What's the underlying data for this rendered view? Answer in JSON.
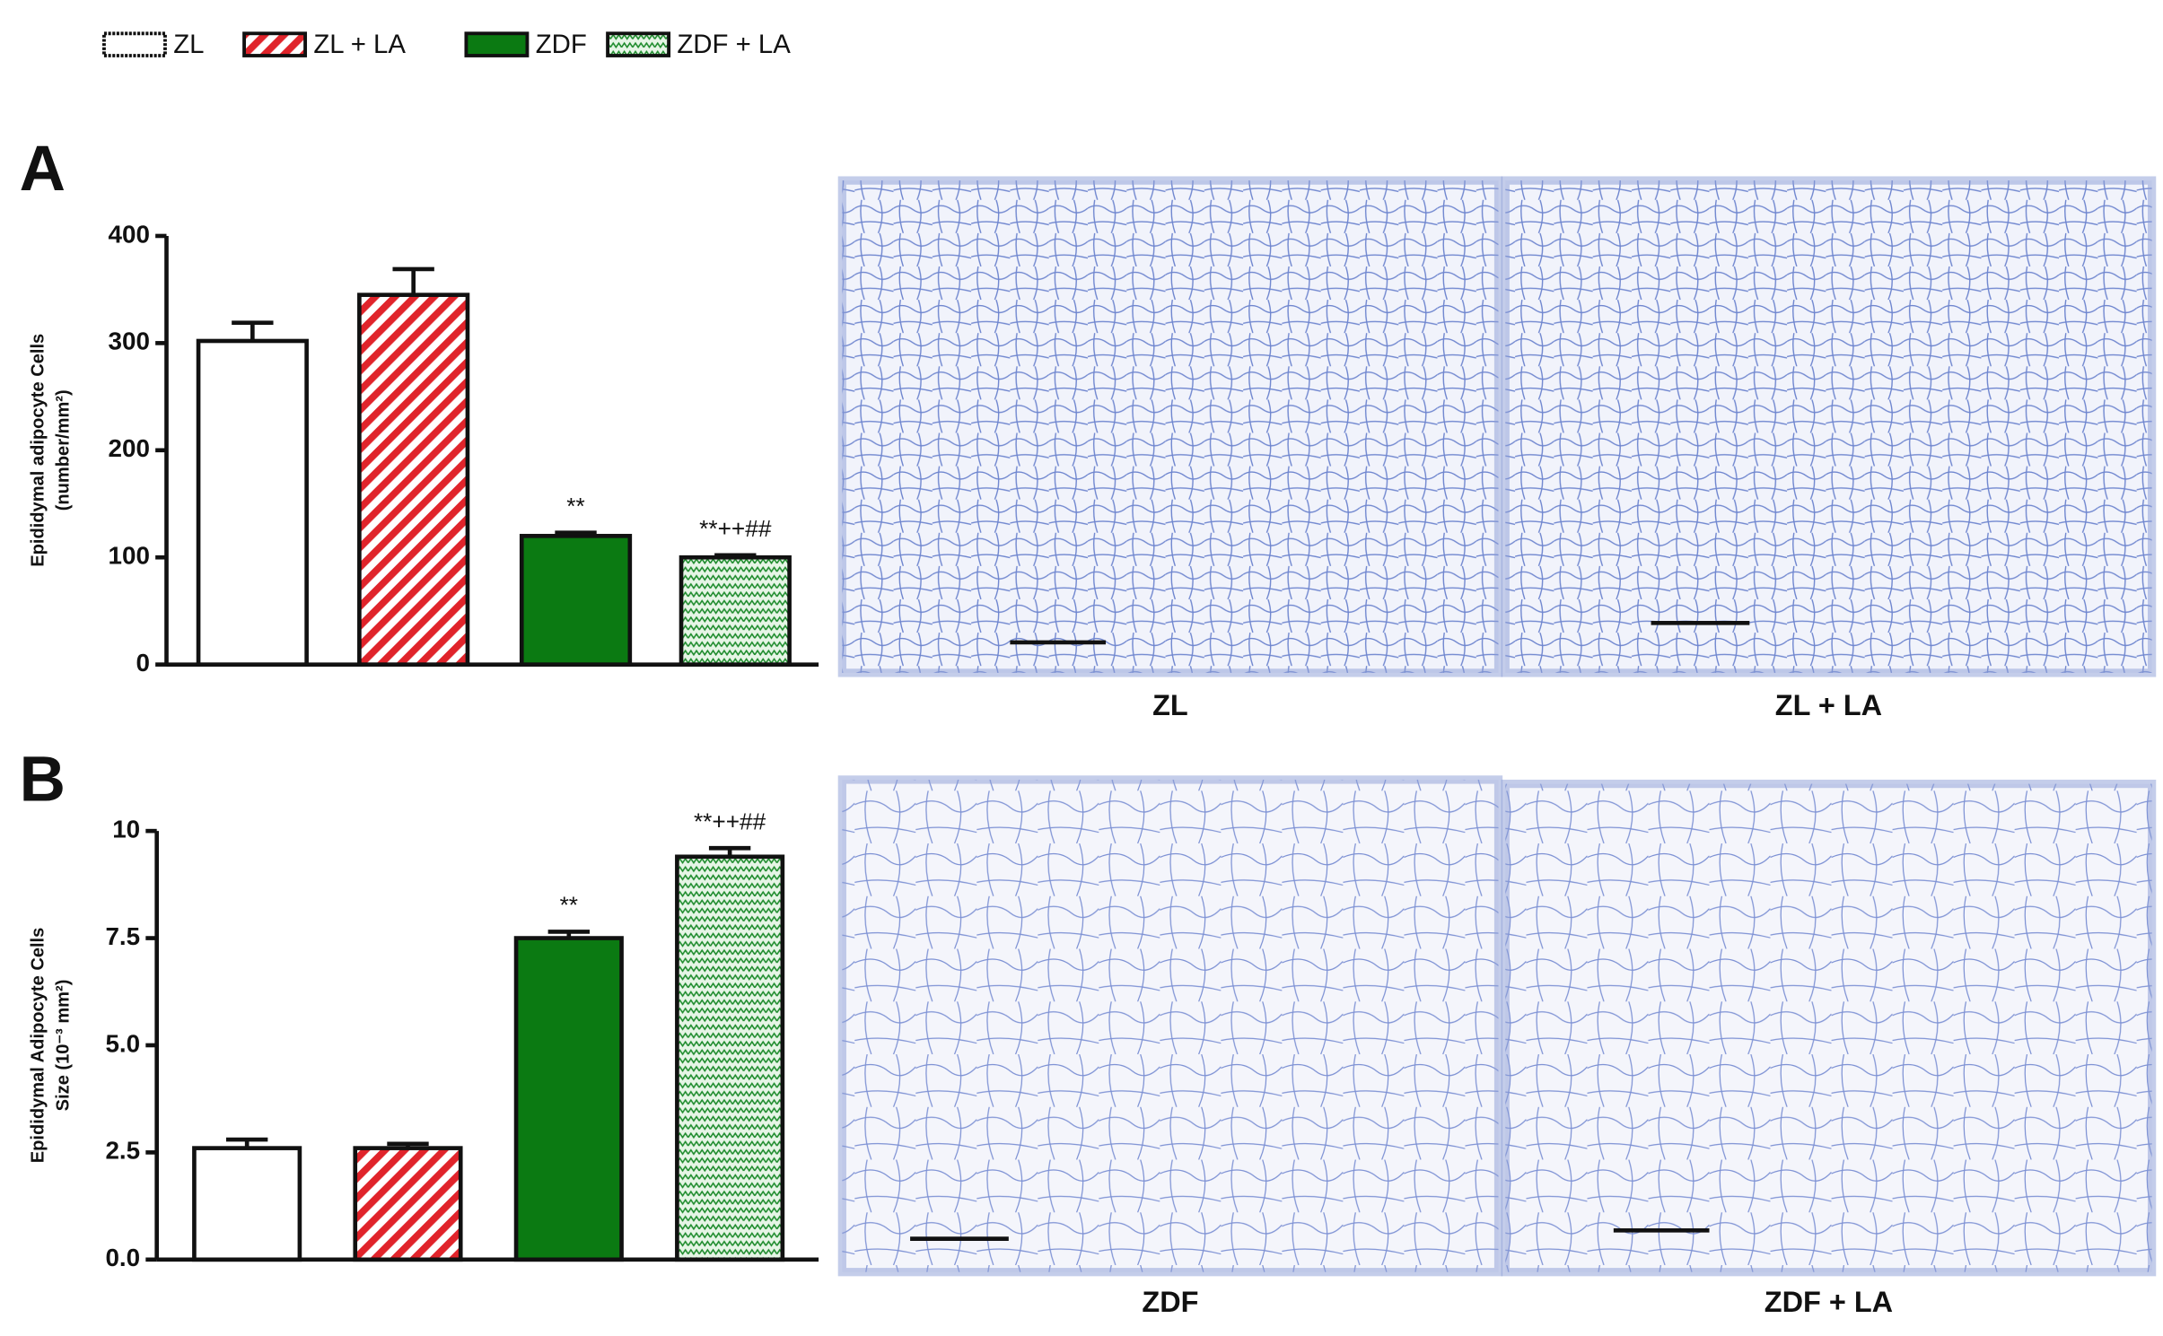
{
  "legend_position": "top-left",
  "chart_data": [
    {
      "type": "bar",
      "panel": "A",
      "ylabel": [
        "Epididymal adipocyte Cells",
        "(number/mm²)"
      ],
      "ylim": [
        0,
        400
      ],
      "yticks": [
        0,
        100,
        200,
        300,
        400
      ],
      "series": [
        {
          "name": "ZL",
          "color": "#ffffff",
          "pattern": "none",
          "values": [
            302
          ],
          "errors": [
            17
          ]
        },
        {
          "name": "ZL + LA",
          "color": "#e0242b",
          "pattern": "stripes",
          "values": [
            345
          ],
          "errors": [
            24
          ]
        },
        {
          "name": "ZDF",
          "color": "#0b7a12",
          "pattern": "none",
          "values": [
            120
          ],
          "errors": [
            3
          ],
          "annotation": "**"
        },
        {
          "name": "ZDF + LA",
          "color": "#1b8a2a",
          "pattern": "zigzag",
          "values": [
            100
          ],
          "errors": [
            2
          ],
          "annotation": "**++##"
        }
      ]
    },
    {
      "type": "bar",
      "panel": "B",
      "ylabel": [
        "Epididymal Adipocyte Cells",
        "Size (10⁻³ mm²)"
      ],
      "ylim": [
        0,
        10
      ],
      "yticks": [
        {
          "value": 0,
          "label": "0.0"
        },
        2.5,
        {
          "value": 5,
          "label": "5.0"
        },
        7.5,
        10
      ],
      "series": [
        {
          "color": "#ffffff",
          "pattern": "none",
          "values": [
            2.6
          ],
          "errors": [
            0.2
          ]
        },
        {
          "color": "#e0242b",
          "pattern": "stripes",
          "values": [
            2.6
          ],
          "errors": [
            0.1
          ]
        },
        {
          "color": "#0b7a12",
          "pattern": "none",
          "values": [
            7.5
          ],
          "errors": [
            0.15
          ],
          "annotation": "**"
        },
        {
          "color": "#1b8a2a",
          "pattern": "zigzag",
          "values": [
            9.4
          ],
          "errors": [
            0.2
          ],
          "annotation": "**++##"
        }
      ]
    }
  ],
  "images": [
    {
      "caption": "ZL"
    },
    {
      "caption": "ZL + LA"
    },
    {
      "caption": "ZDF"
    },
    {
      "caption": "ZDF + LA"
    }
  ]
}
